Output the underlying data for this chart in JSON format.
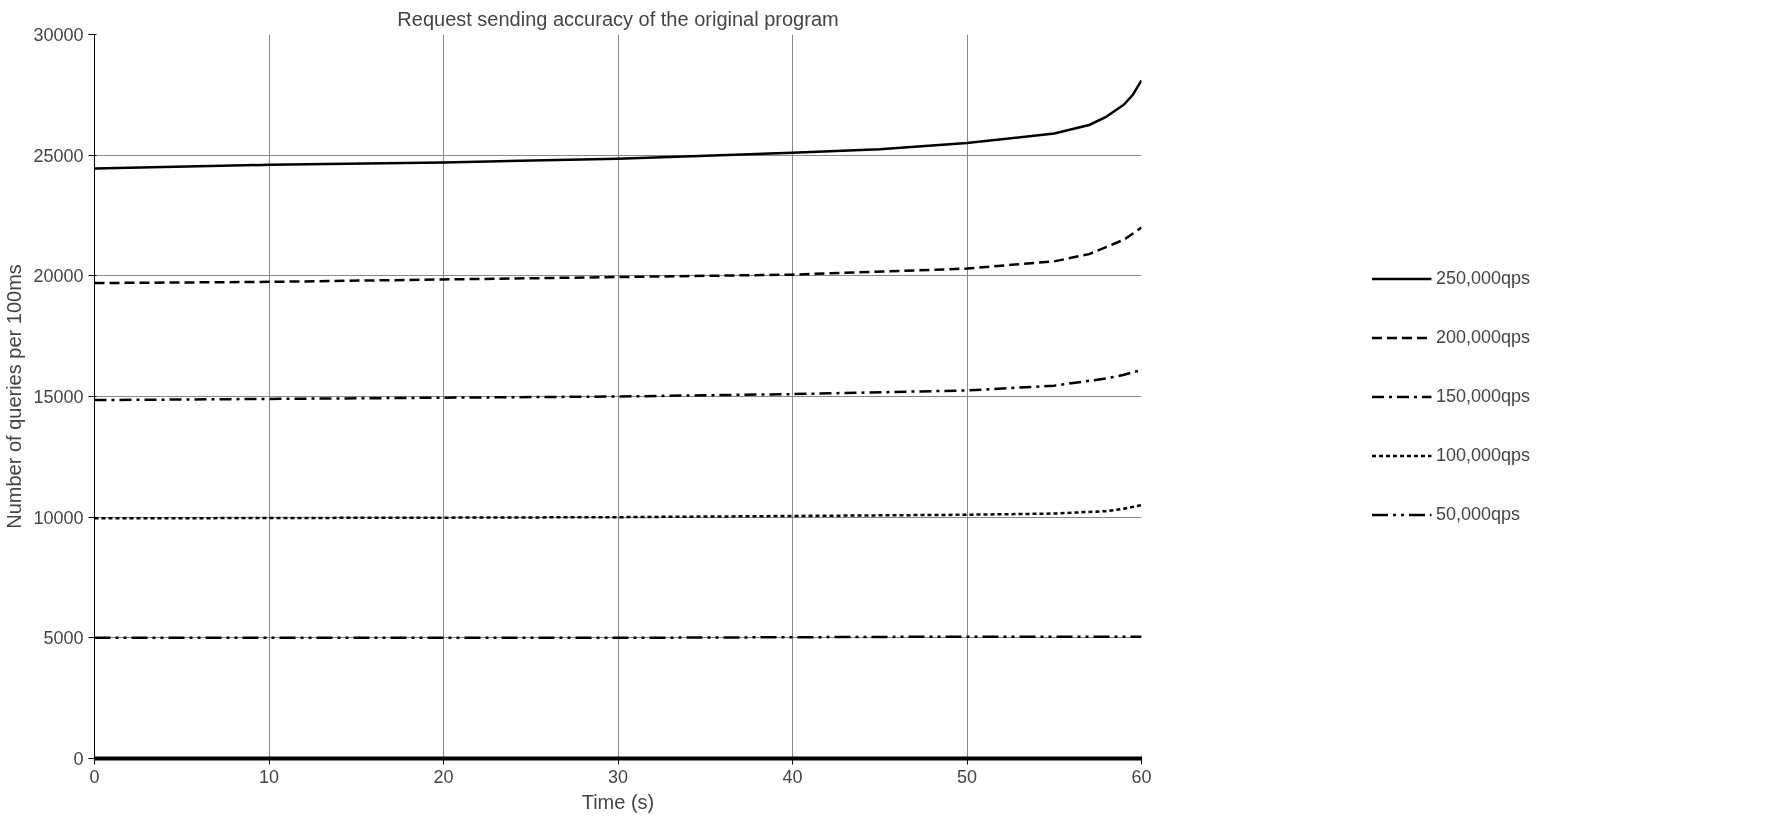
{
  "chart_data": {
    "type": "line",
    "title": "Request sending accuracy of the original program",
    "xlabel": "Time (s)",
    "ylabel": "Number of queries per 100ms",
    "xlim": [
      0,
      60
    ],
    "xticks": [
      0,
      10,
      20,
      30,
      40,
      50,
      60
    ],
    "ylim": [
      0,
      30000
    ],
    "yticks": [
      0,
      5000,
      10000,
      15000,
      20000,
      25000,
      30000
    ],
    "grid": true,
    "legend": "right",
    "series": [
      {
        "name": "250,000qps",
        "color": "#000000",
        "line_style": "solid",
        "x": [
          0,
          10,
          20,
          30,
          40,
          45,
          50,
          55,
          57,
          58,
          59,
          59.5,
          60
        ],
        "values": [
          24450,
          24600,
          24700,
          24850,
          25100,
          25250,
          25500,
          25900,
          26250,
          26600,
          27100,
          27500,
          28100
        ]
      },
      {
        "name": "200,000qps",
        "color": "#000000",
        "line_style": "dashed",
        "x": [
          0,
          10,
          20,
          30,
          40,
          50,
          55,
          57,
          58,
          59,
          60
        ],
        "values": [
          19700,
          19750,
          19850,
          19950,
          20050,
          20300,
          20600,
          20900,
          21200,
          21500,
          22000
        ]
      },
      {
        "name": "150,000qps",
        "color": "#000000",
        "line_style": "dashdot",
        "x": [
          0,
          10,
          20,
          30,
          40,
          50,
          55,
          58,
          59,
          60
        ],
        "values": [
          14850,
          14900,
          14950,
          15000,
          15100,
          15250,
          15450,
          15750,
          15900,
          16100
        ]
      },
      {
        "name": "100,000qps",
        "color": "#000000",
        "line_style": "dotted",
        "x": [
          0,
          20,
          30,
          40,
          50,
          55,
          58,
          59,
          60
        ],
        "values": [
          9950,
          9980,
          10000,
          10050,
          10100,
          10150,
          10250,
          10350,
          10500
        ]
      },
      {
        "name": "50,000qps",
        "color": "#000000",
        "line_style": "dashdotdot",
        "x": [
          0,
          30,
          50,
          60
        ],
        "values": [
          5000,
          5000,
          5050,
          5050
        ]
      }
    ]
  }
}
